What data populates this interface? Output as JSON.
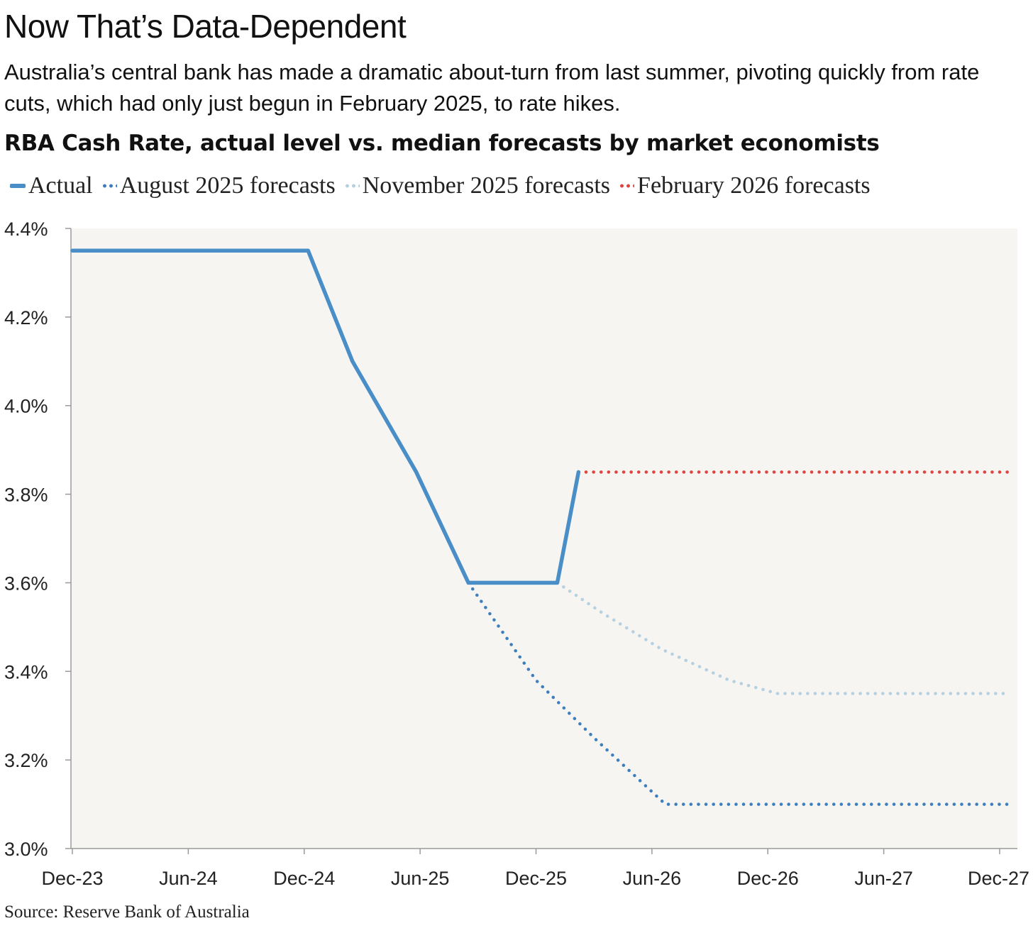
{
  "header": {
    "title": "Now That’s Data-Dependent",
    "subtitle": "Australia’s central bank has made a dramatic about-turn from last summer, pivoting quickly from rate cuts, which had only just begun in February 2025, to rate hikes.",
    "chart_heading": "RBA Cash Rate, actual level vs. median forecasts by market economists"
  },
  "footer": {
    "source": "Source: Reserve Bank of Australia"
  },
  "chart_data": {
    "type": "line",
    "title": "RBA Cash Rate, actual level vs. median forecasts by market economists",
    "xlabel": "",
    "ylabel": "",
    "x_unit": "months since Dec-23",
    "xlim": [
      0,
      48.5
    ],
    "ylim": [
      3.0,
      4.4
    ],
    "grid": false,
    "legend_position": "top",
    "x_ticks": [
      {
        "x": 0,
        "label": "Dec-23"
      },
      {
        "x": 6,
        "label": "Jun-24"
      },
      {
        "x": 12,
        "label": "Dec-24"
      },
      {
        "x": 18,
        "label": "Jun-25"
      },
      {
        "x": 24,
        "label": "Dec-25"
      },
      {
        "x": 30,
        "label": "Jun-26"
      },
      {
        "x": 36,
        "label": "Dec-26"
      },
      {
        "x": 42,
        "label": "Jun-27"
      },
      {
        "x": 48,
        "label": "Dec-27"
      }
    ],
    "y_ticks": [
      {
        "y": 4.4,
        "label": "4.4%"
      },
      {
        "y": 4.2,
        "label": "4.2%"
      },
      {
        "y": 4.0,
        "label": "4.0%"
      },
      {
        "y": 3.8,
        "label": "3.8%"
      },
      {
        "y": 3.6,
        "label": "3.6%"
      },
      {
        "y": 3.4,
        "label": "3.4%"
      },
      {
        "y": 3.2,
        "label": "3.2%"
      },
      {
        "y": 3.0,
        "label": "3.0%"
      }
    ],
    "series": [
      {
        "name": "Actual",
        "style": "solid",
        "color": "#4a8ec7",
        "x": [
          0,
          12.2,
          14.5,
          17.8,
          20.5,
          25.1,
          26.2
        ],
        "y": [
          4.35,
          4.35,
          4.1,
          3.85,
          3.6,
          3.6,
          3.85
        ]
      },
      {
        "name": "August 2025 forecasts",
        "style": "dotted",
        "color": "#3d7fbe",
        "x": [
          20.5,
          24.0,
          27.0,
          30.7,
          48.5
        ],
        "y": [
          3.6,
          3.38,
          3.25,
          3.1,
          3.1
        ]
      },
      {
        "name": "November 2025 forecasts",
        "style": "dotted",
        "color": "#b4d0e1",
        "x": [
          25.1,
          27.5,
          30.5,
          34.0,
          36.5,
          48.5
        ],
        "y": [
          3.6,
          3.53,
          3.45,
          3.38,
          3.35,
          3.35
        ]
      },
      {
        "name": "February 2026 forecasts",
        "style": "dotted",
        "color": "#e0443e",
        "x": [
          26.2,
          48.5
        ],
        "y": [
          3.85,
          3.85
        ]
      }
    ]
  }
}
